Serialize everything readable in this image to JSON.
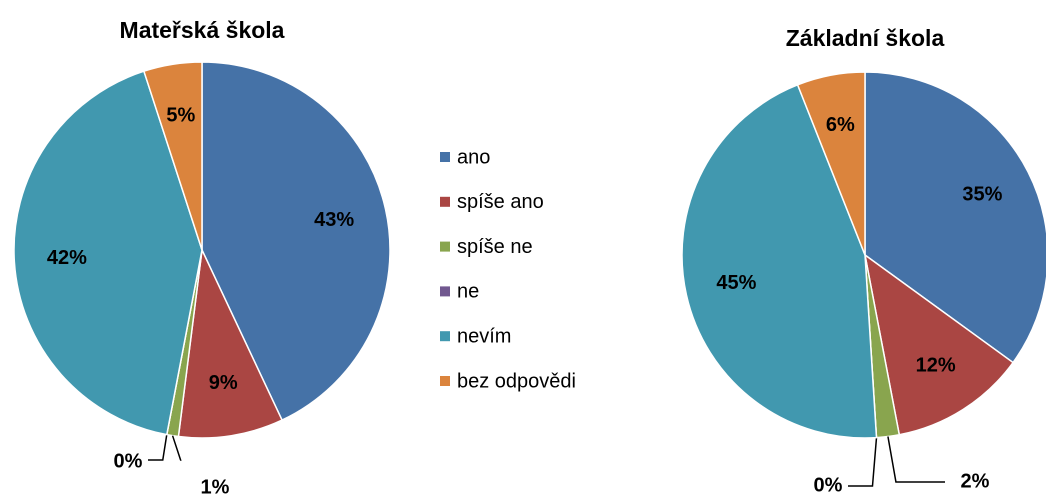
{
  "legend": {
    "categories": [
      "ano",
      "spíše ano",
      "spíše ne",
      "ne",
      "nevím",
      "bez odpovědi"
    ],
    "colors": [
      "#4572a7",
      "#aa4643",
      "#89a54e",
      "#71588f",
      "#4198af",
      "#db843d"
    ]
  },
  "chart_data": [
    {
      "type": "pie",
      "title": "Mateřská škola",
      "values": [
        43,
        9,
        1,
        0,
        42,
        5
      ],
      "value_labels": [
        "43%",
        "9%",
        "1%",
        "0%",
        "42%",
        "5%"
      ]
    },
    {
      "type": "pie",
      "title": "Základní škola",
      "values": [
        35,
        12,
        2,
        0,
        45,
        6
      ],
      "value_labels": [
        "35%",
        "12%",
        "2%",
        "0%",
        "45%",
        "6%"
      ]
    }
  ]
}
